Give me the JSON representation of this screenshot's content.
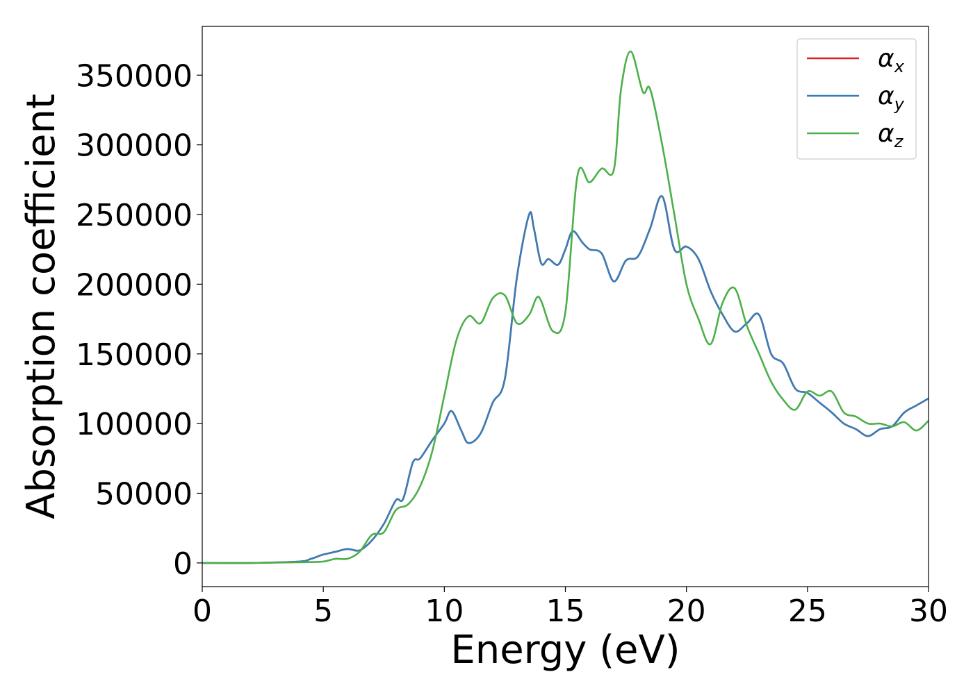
{
  "chart_data": {
    "type": "line",
    "title": "",
    "xlabel": "Energy (eV)",
    "ylabel": "Absorption coefficient",
    "xlim": [
      0,
      30
    ],
    "ylim": [
      -17000,
      385000
    ],
    "xticks": [
      0,
      5,
      10,
      15,
      20,
      25,
      30
    ],
    "xtick_labels": [
      "0",
      "5",
      "10",
      "15",
      "20",
      "25",
      "30"
    ],
    "yticks": [
      0,
      50000,
      100000,
      150000,
      200000,
      250000,
      300000,
      350000
    ],
    "ytick_labels": [
      "0",
      "50000",
      "100000",
      "150000",
      "200000",
      "250000",
      "300000",
      "350000"
    ],
    "grid": false,
    "legend_position": "top-right",
    "series": [
      {
        "name": "α",
        "subscript": "x",
        "color": "#e41a1c",
        "x": [
          0,
          2,
          4,
          4.5,
          5,
          5.5,
          6,
          6.5,
          7,
          7.5,
          8,
          8.3,
          8.7,
          9,
          9.5,
          10,
          10.3,
          10.7,
          11,
          11.5,
          12,
          12.5,
          13,
          13.5,
          13.7,
          14,
          14.3,
          14.7,
          15,
          15.3,
          15.7,
          16,
          16.5,
          17,
          17.5,
          18,
          18.5,
          19,
          19.5,
          20,
          20.5,
          21,
          21.5,
          22,
          22.5,
          23,
          23.5,
          24,
          24.5,
          25,
          25.5,
          26,
          26.5,
          27,
          27.5,
          28,
          28.5,
          29,
          29.5,
          30
        ],
        "y": [
          0,
          0,
          1000,
          3000,
          6000,
          8000,
          10000,
          9000,
          16000,
          28000,
          45000,
          46000,
          72000,
          75000,
          88000,
          100000,
          109000,
          95000,
          86000,
          93000,
          115000,
          132000,
          205000,
          250000,
          240000,
          215000,
          218000,
          214000,
          225000,
          238000,
          230000,
          225000,
          222000,
          202000,
          217000,
          220000,
          240000,
          263000,
          225000,
          227000,
          218000,
          195000,
          178000,
          166000,
          172000,
          178000,
          150000,
          143000,
          125000,
          122000,
          115000,
          108000,
          100000,
          96000,
          91000,
          96000,
          98000,
          108000,
          113000,
          118000
        ]
      },
      {
        "name": "α",
        "subscript": "y",
        "color": "#377eb8",
        "x": [
          0,
          2,
          4,
          4.5,
          5,
          5.5,
          6,
          6.5,
          7,
          7.5,
          8,
          8.3,
          8.7,
          9,
          9.5,
          10,
          10.3,
          10.7,
          11,
          11.5,
          12,
          12.5,
          13,
          13.5,
          13.7,
          14,
          14.3,
          14.7,
          15,
          15.3,
          15.7,
          16,
          16.5,
          17,
          17.5,
          18,
          18.5,
          19,
          19.5,
          20,
          20.5,
          21,
          21.5,
          22,
          22.5,
          23,
          23.5,
          24,
          24.5,
          25,
          25.5,
          26,
          26.5,
          27,
          27.5,
          28,
          28.5,
          29,
          29.5,
          30
        ],
        "y": [
          0,
          0,
          1000,
          3000,
          6000,
          8000,
          10000,
          9000,
          16000,
          28000,
          45000,
          46000,
          72000,
          75000,
          88000,
          100000,
          109000,
          95000,
          86000,
          93000,
          115000,
          132000,
          205000,
          250000,
          240000,
          215000,
          218000,
          214000,
          225000,
          238000,
          230000,
          225000,
          222000,
          202000,
          217000,
          220000,
          240000,
          263000,
          225000,
          227000,
          218000,
          195000,
          178000,
          166000,
          172000,
          178000,
          150000,
          143000,
          125000,
          122000,
          115000,
          108000,
          100000,
          96000,
          91000,
          96000,
          98000,
          108000,
          113000,
          118000
        ]
      },
      {
        "name": "α",
        "subscript": "z",
        "color": "#4daf4a",
        "x": [
          0,
          2,
          4,
          5,
          5.5,
          6,
          6.5,
          7,
          7.5,
          8,
          8.5,
          9,
          9.5,
          10,
          10.5,
          11,
          11.5,
          12,
          12.5,
          13,
          13.5,
          13.8,
          14,
          14.5,
          15,
          15.5,
          16,
          16.5,
          17,
          17.3,
          17.7,
          18.2,
          18.5,
          19,
          19.5,
          20,
          20.5,
          21,
          21.5,
          22,
          22.5,
          23,
          23.5,
          24,
          24.5,
          25,
          25.5,
          26,
          26.5,
          27,
          27.5,
          28,
          28.5,
          29,
          29.5,
          30
        ],
        "y": [
          0,
          0,
          500,
          1000,
          3000,
          3000,
          8000,
          20000,
          22000,
          38000,
          42000,
          55000,
          80000,
          120000,
          160000,
          177000,
          172000,
          190000,
          192000,
          172000,
          178000,
          190000,
          188000,
          166000,
          180000,
          278000,
          273000,
          283000,
          282000,
          340000,
          367000,
          338000,
          340000,
          300000,
          250000,
          200000,
          175000,
          157000,
          187000,
          197000,
          170000,
          150000,
          130000,
          117000,
          110000,
          123000,
          120000,
          123000,
          108000,
          105000,
          100000,
          100000,
          98000,
          101000,
          95000,
          102000
        ]
      }
    ]
  }
}
